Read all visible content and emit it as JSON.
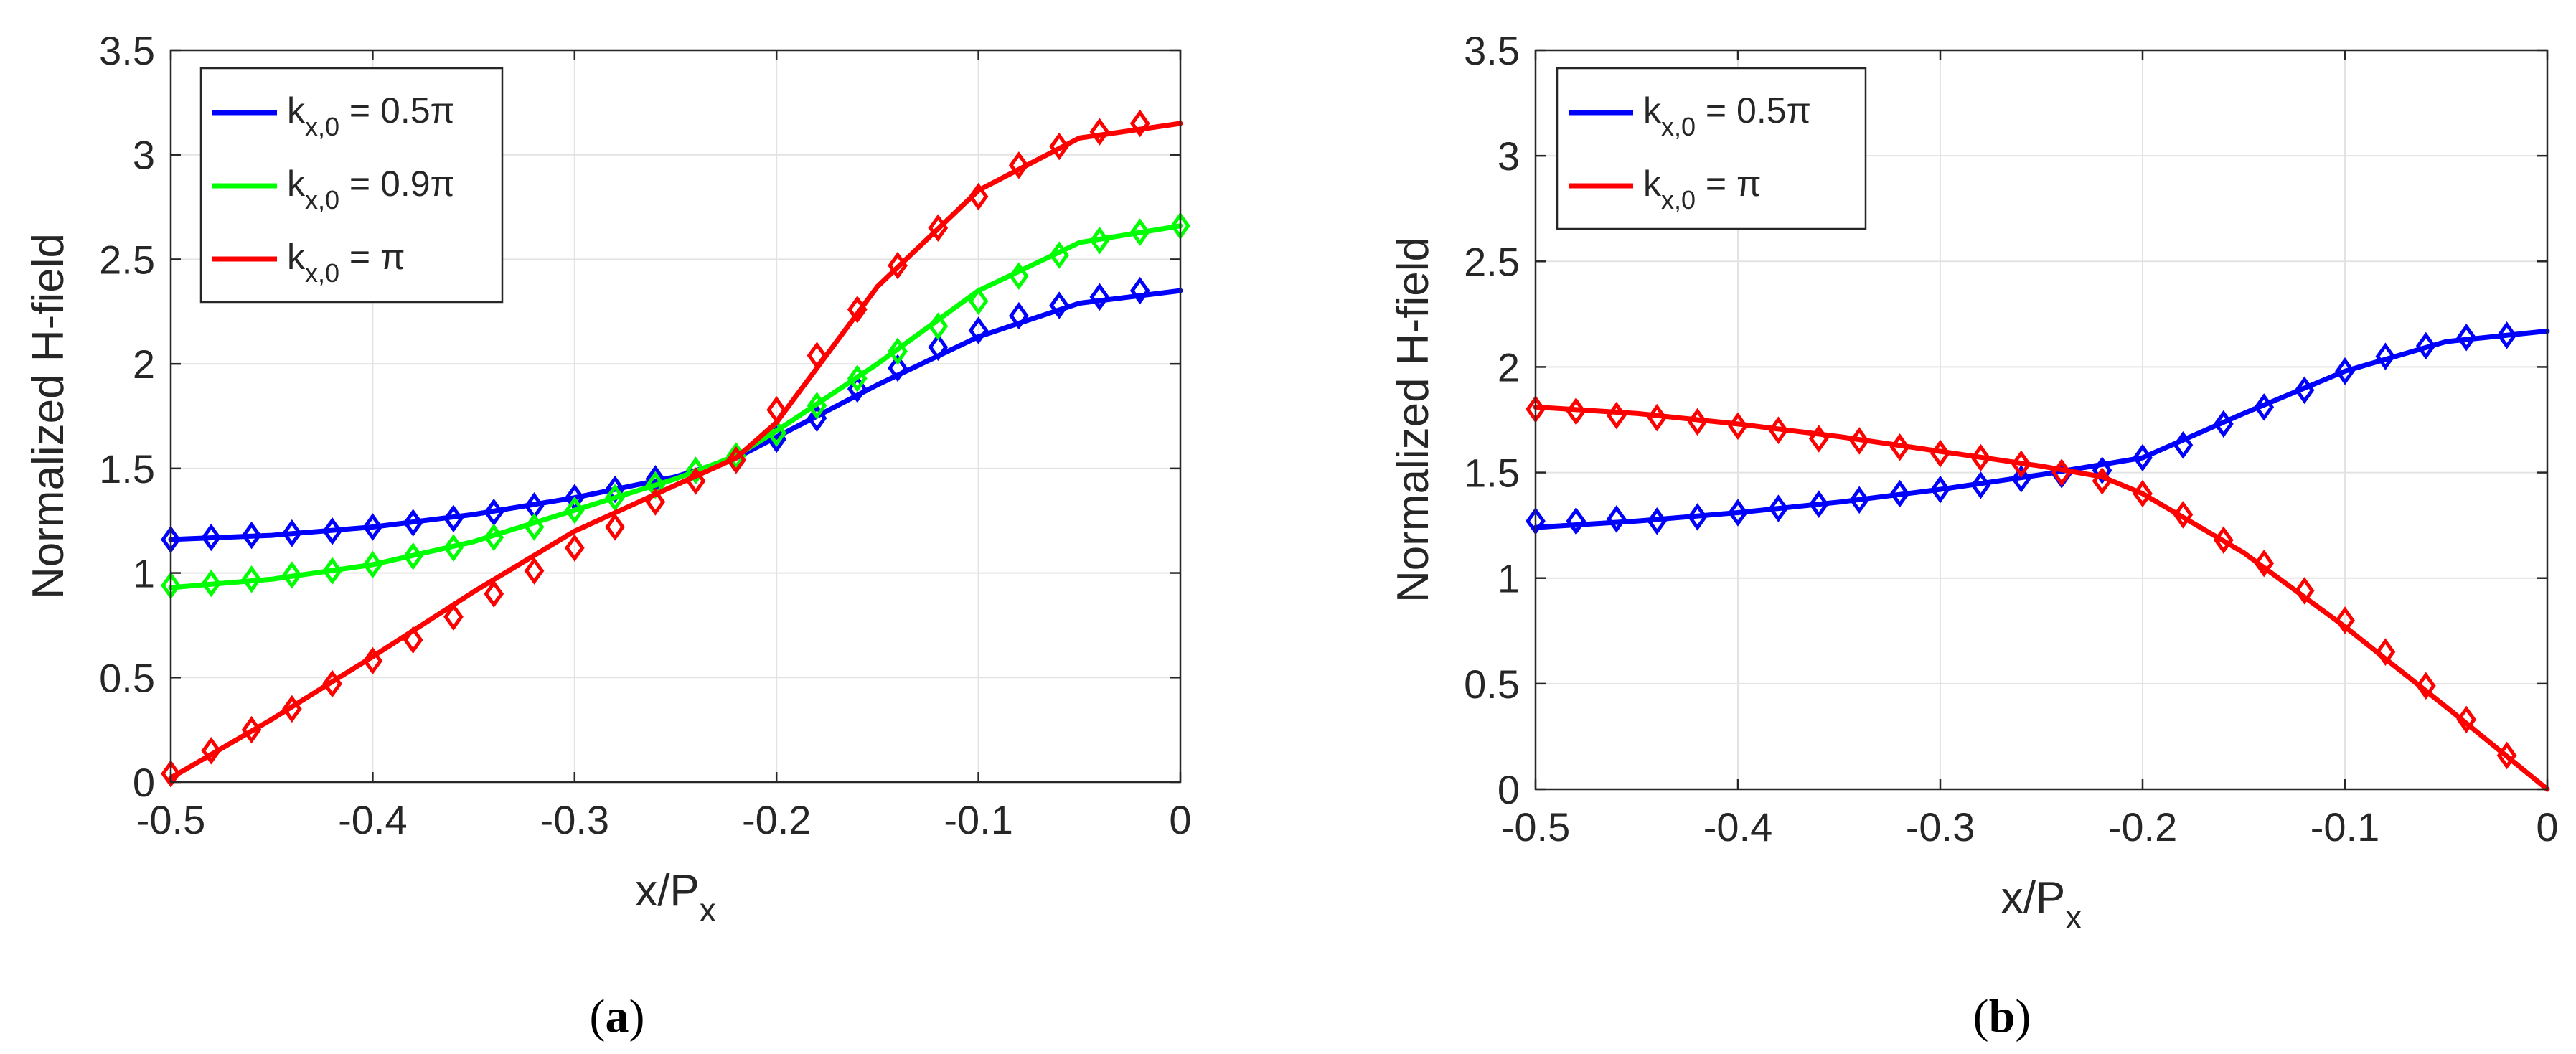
{
  "chart_data": [
    {
      "type": "line",
      "caption_open": "(",
      "caption_letter": "a",
      "caption_close": ")",
      "xlabel": "x/P",
      "xlabel_sub": "x",
      "ylabel": "Normalized H-field",
      "xlim": [
        -0.5,
        0
      ],
      "ylim": [
        0,
        3.5
      ],
      "xticks": [
        -0.5,
        -0.4,
        -0.3,
        -0.2,
        -0.1,
        0
      ],
      "xtick_labels": [
        "-0.5",
        "-0.4",
        "-0.3",
        "-0.2",
        "-0.1",
        "0"
      ],
      "yticks": [
        0,
        0.5,
        1,
        1.5,
        2,
        2.5,
        3,
        3.5
      ],
      "ytick_labels": [
        "0",
        "0.5",
        "1",
        "1.5",
        "2",
        "2.5",
        "3",
        "3.5"
      ],
      "grid": true,
      "legend_position": "top-left",
      "series": [
        {
          "name": "k_{x,0} = 0.5π",
          "legend_k": "k",
          "legend_sub": "x,0",
          "legend_rest": " = 0.5π",
          "color": "#0000ff",
          "line_x": [
            -0.5,
            -0.45,
            -0.4,
            -0.35,
            -0.3,
            -0.25,
            -0.22,
            -0.2,
            -0.15,
            -0.1,
            -0.05,
            0
          ],
          "line_y": [
            1.16,
            1.18,
            1.22,
            1.28,
            1.36,
            1.46,
            1.55,
            1.65,
            1.9,
            2.13,
            2.29,
            2.35
          ],
          "marker_x": [
            -0.5,
            -0.48,
            -0.46,
            -0.44,
            -0.42,
            -0.4,
            -0.38,
            -0.36,
            -0.34,
            -0.32,
            -0.3,
            -0.28,
            -0.26,
            -0.24,
            -0.22,
            -0.2,
            -0.18,
            -0.16,
            -0.14,
            -0.12,
            -0.1,
            -0.08,
            -0.06,
            -0.04,
            -0.02
          ],
          "marker_y": [
            1.16,
            1.17,
            1.18,
            1.19,
            1.2,
            1.22,
            1.24,
            1.26,
            1.29,
            1.32,
            1.36,
            1.4,
            1.45,
            1.49,
            1.54,
            1.64,
            1.74,
            1.88,
            1.98,
            2.08,
            2.16,
            2.23,
            2.28,
            2.32,
            2.35
          ]
        },
        {
          "name": "k_{x,0} = 0.9π",
          "legend_k": "k",
          "legend_sub": "x,0",
          "legend_rest": " = 0.9π",
          "color": "#00ff00",
          "line_x": [
            -0.5,
            -0.45,
            -0.4,
            -0.35,
            -0.3,
            -0.25,
            -0.22,
            -0.2,
            -0.15,
            -0.1,
            -0.05,
            0
          ],
          "line_y": [
            0.93,
            0.97,
            1.04,
            1.15,
            1.3,
            1.45,
            1.56,
            1.68,
            2.0,
            2.35,
            2.58,
            2.66
          ],
          "marker_x": [
            -0.5,
            -0.48,
            -0.46,
            -0.44,
            -0.42,
            -0.4,
            -0.38,
            -0.36,
            -0.34,
            -0.32,
            -0.3,
            -0.28,
            -0.26,
            -0.24,
            -0.22,
            -0.2,
            -0.18,
            -0.16,
            -0.14,
            -0.12,
            -0.1,
            -0.08,
            -0.06,
            -0.04,
            -0.02,
            0
          ],
          "marker_y": [
            0.94,
            0.95,
            0.97,
            0.99,
            1.01,
            1.04,
            1.08,
            1.12,
            1.17,
            1.22,
            1.3,
            1.36,
            1.42,
            1.49,
            1.56,
            1.67,
            1.8,
            1.93,
            2.06,
            2.18,
            2.3,
            2.42,
            2.52,
            2.59,
            2.63,
            2.66
          ]
        },
        {
          "name": "k_{x,0} = π",
          "legend_k": "k",
          "legend_sub": "x,0",
          "legend_rest": " = π",
          "color": "#ff0000",
          "line_x": [
            -0.5,
            -0.45,
            -0.4,
            -0.35,
            -0.3,
            -0.25,
            -0.22,
            -0.2,
            -0.15,
            -0.1,
            -0.05,
            0
          ],
          "line_y": [
            0.02,
            0.3,
            0.6,
            0.91,
            1.2,
            1.42,
            1.55,
            1.72,
            2.37,
            2.83,
            3.08,
            3.15
          ],
          "marker_x": [
            -0.5,
            -0.48,
            -0.46,
            -0.44,
            -0.42,
            -0.4,
            -0.38,
            -0.36,
            -0.34,
            -0.32,
            -0.3,
            -0.28,
            -0.26,
            -0.24,
            -0.22,
            -0.2,
            -0.18,
            -0.16,
            -0.14,
            -0.12,
            -0.1,
            -0.08,
            -0.06,
            -0.04,
            -0.02
          ],
          "marker_y": [
            0.04,
            0.15,
            0.25,
            0.35,
            0.47,
            0.58,
            0.68,
            0.79,
            0.9,
            1.01,
            1.12,
            1.22,
            1.34,
            1.44,
            1.54,
            1.78,
            2.04,
            2.26,
            2.47,
            2.65,
            2.8,
            2.95,
            3.04,
            3.11,
            3.15
          ]
        }
      ]
    },
    {
      "type": "line",
      "caption_open": "(",
      "caption_letter": "b",
      "caption_close": ")",
      "xlabel": "x/P",
      "xlabel_sub": "x",
      "ylabel": "Normalized H-field",
      "xlim": [
        -0.5,
        0
      ],
      "ylim": [
        0,
        3.5
      ],
      "xticks": [
        -0.5,
        -0.4,
        -0.3,
        -0.2,
        -0.1,
        0
      ],
      "xtick_labels": [
        "-0.5",
        "-0.4",
        "-0.3",
        "-0.2",
        "-0.1",
        "0"
      ],
      "yticks": [
        0,
        0.5,
        1,
        1.5,
        2,
        2.5,
        3,
        3.5
      ],
      "ytick_labels": [
        "0",
        "0.5",
        "1",
        "1.5",
        "2",
        "2.5",
        "3",
        "3.5"
      ],
      "grid": true,
      "legend_position": "top-left",
      "series": [
        {
          "name": "k_{x,0} = 0.5π",
          "legend_k": "k",
          "legend_sub": "x,0",
          "legend_rest": " = 0.5π",
          "color": "#0000ff",
          "line_x": [
            -0.5,
            -0.45,
            -0.4,
            -0.35,
            -0.3,
            -0.25,
            -0.2,
            -0.15,
            -0.1,
            -0.05,
            0
          ],
          "line_y": [
            1.24,
            1.27,
            1.31,
            1.36,
            1.42,
            1.49,
            1.57,
            1.78,
            1.98,
            2.12,
            2.17
          ],
          "marker_x": [
            -0.5,
            -0.48,
            -0.46,
            -0.44,
            -0.42,
            -0.4,
            -0.38,
            -0.36,
            -0.34,
            -0.32,
            -0.3,
            -0.28,
            -0.26,
            -0.24,
            -0.22,
            -0.2,
            -0.18,
            -0.16,
            -0.14,
            -0.12,
            -0.1,
            -0.08,
            -0.06,
            -0.04,
            -0.02
          ],
          "marker_y": [
            1.27,
            1.27,
            1.28,
            1.27,
            1.29,
            1.31,
            1.33,
            1.35,
            1.37,
            1.4,
            1.42,
            1.44,
            1.47,
            1.49,
            1.51,
            1.57,
            1.63,
            1.73,
            1.81,
            1.89,
            1.98,
            2.05,
            2.1,
            2.14,
            2.15
          ]
        },
        {
          "name": "k_{x,0} = π",
          "legend_k": "k",
          "legend_sub": "x,0",
          "legend_rest": " = π",
          "color": "#ff0000",
          "line_x": [
            -0.5,
            -0.45,
            -0.4,
            -0.35,
            -0.3,
            -0.25,
            -0.22,
            -0.2,
            -0.15,
            -0.1,
            -0.05,
            0
          ],
          "line_y": [
            1.81,
            1.78,
            1.73,
            1.67,
            1.6,
            1.53,
            1.48,
            1.4,
            1.12,
            0.77,
            0.39,
            0.0
          ],
          "marker_x": [
            -0.5,
            -0.48,
            -0.46,
            -0.44,
            -0.42,
            -0.4,
            -0.38,
            -0.36,
            -0.34,
            -0.32,
            -0.3,
            -0.28,
            -0.26,
            -0.24,
            -0.22,
            -0.2,
            -0.18,
            -0.16,
            -0.14,
            -0.12,
            -0.1,
            -0.08,
            -0.06,
            -0.04,
            -0.02
          ],
          "marker_y": [
            1.8,
            1.79,
            1.77,
            1.76,
            1.74,
            1.72,
            1.7,
            1.66,
            1.65,
            1.62,
            1.59,
            1.57,
            1.54,
            1.5,
            1.46,
            1.4,
            1.3,
            1.18,
            1.07,
            0.94,
            0.8,
            0.65,
            0.49,
            0.33,
            0.16
          ]
        }
      ]
    }
  ]
}
